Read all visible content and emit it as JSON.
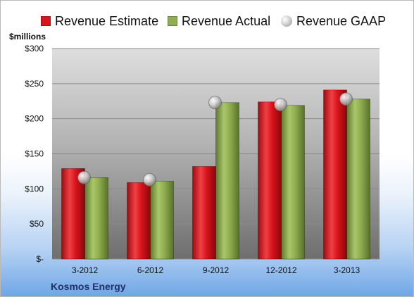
{
  "chart_data": {
    "type": "bar",
    "company": "Kosmos Energy",
    "ylabel": "$millions",
    "ylim": [
      0,
      300
    ],
    "yticks": [
      {
        "value": 0,
        "label": "$-"
      },
      {
        "value": 50,
        "label": "$50"
      },
      {
        "value": 100,
        "label": "$100"
      },
      {
        "value": 150,
        "label": "$150"
      },
      {
        "value": 200,
        "label": "$200"
      },
      {
        "value": 250,
        "label": "$250"
      },
      {
        "value": 300,
        "label": "$300"
      }
    ],
    "categories": [
      "3-2012",
      "6-2012",
      "9-2012",
      "12-2012",
      "3-2013"
    ],
    "series": [
      {
        "name": "Revenue Estimate",
        "kind": "bar",
        "color": "#d8141c",
        "values": [
          129,
          109,
          132,
          224,
          241
        ]
      },
      {
        "name": "Revenue Actual",
        "kind": "bar",
        "color": "#8fae4f",
        "values": [
          116,
          111,
          223,
          219,
          228
        ]
      },
      {
        "name": "Revenue GAAP",
        "kind": "marker",
        "color": "#b9b9b9",
        "values": [
          116,
          113,
          223,
          220,
          228
        ]
      }
    ],
    "legend_position": "top",
    "grid": true
  }
}
